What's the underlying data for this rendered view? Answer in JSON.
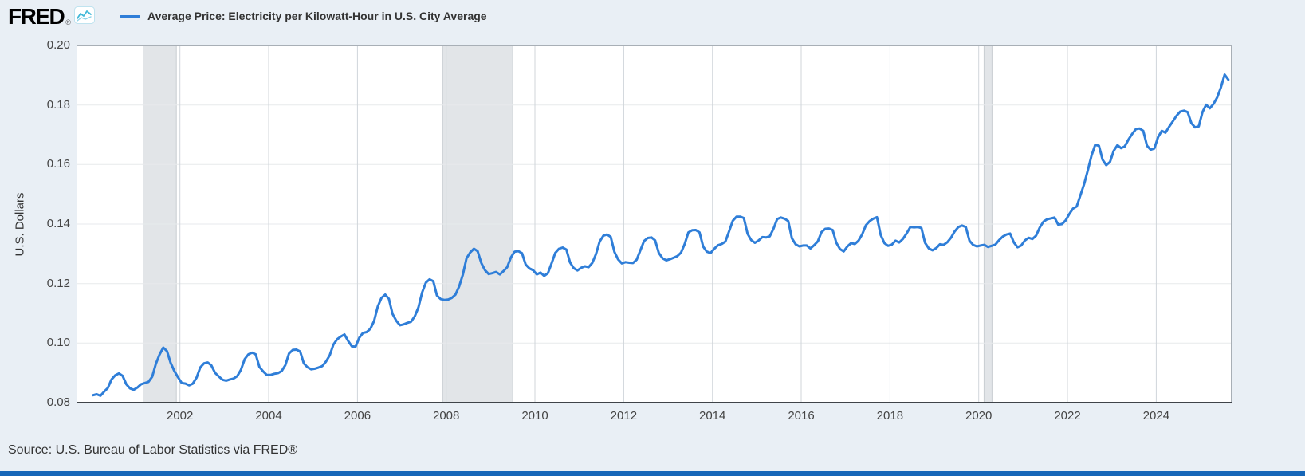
{
  "header": {
    "logo_text": "FRED",
    "registered_mark": "®",
    "legend_label": "Average Price: Electricity per Kilowatt-Hour in U.S. City Average"
  },
  "footer": {
    "source_text": "Source: U.S. Bureau of Labor Statistics via FRED®"
  },
  "colors": {
    "line": "#2f7ed8",
    "recession_band": "#e2e5e8",
    "recession_edge": "#c9cdd1",
    "page_bg": "#e9eff5",
    "plot_bg": "#ffffff",
    "grid_vertical": "#d0d5da",
    "grid_horizontal": "#e7eaec",
    "frame": "#a8afb6",
    "axis": "#3f4449",
    "bottom_bar": "#1666b8",
    "logo_icon_teal": "#43b9d8"
  },
  "chart_data": {
    "type": "line",
    "title": "Average Price: Electricity per Kilowatt-Hour in U.S. City Average",
    "xlabel": "",
    "ylabel": "U.S. Dollars",
    "x_domain": [
      1999.67,
      2025.7
    ],
    "y_domain": [
      0.08,
      0.2
    ],
    "x_ticks": [
      2002,
      2004,
      2006,
      2008,
      2010,
      2012,
      2014,
      2016,
      2018,
      2020,
      2022,
      2024
    ],
    "y_ticks": [
      0.08,
      0.1,
      0.12,
      0.14,
      0.16,
      0.18,
      0.2
    ],
    "grid": true,
    "legend_position": "top-left",
    "recessions": [
      [
        2001.17,
        2001.92
      ],
      [
        2007.92,
        2009.5
      ],
      [
        2020.12,
        2020.3
      ]
    ],
    "series": [
      {
        "name": "Average Price: Electricity per Kilowatt-Hour in U.S. City Average",
        "units": "U.S. Dollars",
        "frequency": "monthly",
        "start_year": 2000,
        "start_month": 1,
        "values": [
          0.0825,
          0.0828,
          0.0823,
          0.0837,
          0.0849,
          0.0878,
          0.0892,
          0.0898,
          0.089,
          0.0862,
          0.0848,
          0.0843,
          0.0851,
          0.0862,
          0.0866,
          0.087,
          0.0887,
          0.0931,
          0.0962,
          0.0985,
          0.0973,
          0.0933,
          0.0906,
          0.0885,
          0.0866,
          0.0864,
          0.0858,
          0.0864,
          0.0884,
          0.0918,
          0.0932,
          0.0935,
          0.0925,
          0.09,
          0.0888,
          0.0877,
          0.0874,
          0.0878,
          0.0881,
          0.0889,
          0.091,
          0.0946,
          0.0962,
          0.0968,
          0.0962,
          0.092,
          0.0905,
          0.0893,
          0.0893,
          0.0897,
          0.0899,
          0.0906,
          0.0926,
          0.0965,
          0.0977,
          0.0978,
          0.0972,
          0.0932,
          0.0919,
          0.0912,
          0.0914,
          0.0918,
          0.0923,
          0.0938,
          0.0959,
          0.0995,
          0.1013,
          0.1022,
          0.1029,
          0.1007,
          0.0989,
          0.0988,
          0.1018,
          0.1034,
          0.1037,
          0.1048,
          0.1074,
          0.1123,
          0.1152,
          0.1163,
          0.1149,
          0.1098,
          0.1075,
          0.106,
          0.1063,
          0.1068,
          0.1072,
          0.109,
          0.112,
          0.117,
          0.1203,
          0.1214,
          0.1208,
          0.116,
          0.1148,
          0.1145,
          0.1146,
          0.1152,
          0.1163,
          0.119,
          0.123,
          0.1285,
          0.1305,
          0.1317,
          0.1309,
          0.1269,
          0.1245,
          0.1232,
          0.1235,
          0.1239,
          0.1231,
          0.1242,
          0.1255,
          0.1288,
          0.1307,
          0.1309,
          0.1302,
          0.1264,
          0.1251,
          0.1245,
          0.1231,
          0.1237,
          0.1226,
          0.1235,
          0.1268,
          0.1303,
          0.1317,
          0.1321,
          0.1314,
          0.1271,
          0.1252,
          0.1244,
          0.1253,
          0.1258,
          0.1255,
          0.1269,
          0.1299,
          0.1341,
          0.1361,
          0.1365,
          0.1357,
          0.1306,
          0.1281,
          0.1268,
          0.1272,
          0.127,
          0.1269,
          0.128,
          0.1311,
          0.1343,
          0.1353,
          0.1355,
          0.1345,
          0.1303,
          0.1285,
          0.1278,
          0.1282,
          0.1287,
          0.1292,
          0.1304,
          0.1333,
          0.1372,
          0.1379,
          0.138,
          0.1372,
          0.1324,
          0.1307,
          0.1303,
          0.1317,
          0.1329,
          0.1333,
          0.1341,
          0.1376,
          0.1411,
          0.1425,
          0.1425,
          0.142,
          0.1367,
          0.1346,
          0.1337,
          0.1345,
          0.1356,
          0.1355,
          0.1359,
          0.1384,
          0.1417,
          0.1422,
          0.1418,
          0.141,
          0.1352,
          0.1332,
          0.1325,
          0.1328,
          0.1328,
          0.1318,
          0.1329,
          0.1342,
          0.1373,
          0.1384,
          0.1385,
          0.138,
          0.1337,
          0.1316,
          0.1308,
          0.1325,
          0.1336,
          0.1333,
          0.1344,
          0.1366,
          0.1396,
          0.141,
          0.1418,
          0.1423,
          0.1363,
          0.1336,
          0.1327,
          0.1331,
          0.1344,
          0.1338,
          0.135,
          0.1368,
          0.139,
          0.1389,
          0.139,
          0.1387,
          0.1337,
          0.1318,
          0.1312,
          0.1319,
          0.1332,
          0.133,
          0.1339,
          0.1354,
          0.1375,
          0.139,
          0.1395,
          0.139,
          0.1344,
          0.133,
          0.1325,
          0.1328,
          0.133,
          0.1323,
          0.1327,
          0.1331,
          0.1346,
          0.1358,
          0.1365,
          0.1368,
          0.1338,
          0.1322,
          0.1328,
          0.1345,
          0.1354,
          0.135,
          0.1361,
          0.1388,
          0.1408,
          0.1416,
          0.1419,
          0.1422,
          0.1398,
          0.14,
          0.1412,
          0.1434,
          0.1452,
          0.1459,
          0.1497,
          0.1534,
          0.158,
          0.163,
          0.1666,
          0.1663,
          0.1616,
          0.1598,
          0.1609,
          0.1646,
          0.1665,
          0.1655,
          0.1661,
          0.1684,
          0.1703,
          0.1719,
          0.1721,
          0.1713,
          0.1663,
          0.165,
          0.1654,
          0.1692,
          0.1713,
          0.1707,
          0.1727,
          0.1745,
          0.1764,
          0.1778,
          0.1781,
          0.1776,
          0.1739,
          0.1725,
          0.1728,
          0.1776,
          0.1801,
          0.1789,
          0.1804,
          0.1826,
          0.1859,
          0.1902,
          0.1885
        ]
      }
    ]
  }
}
